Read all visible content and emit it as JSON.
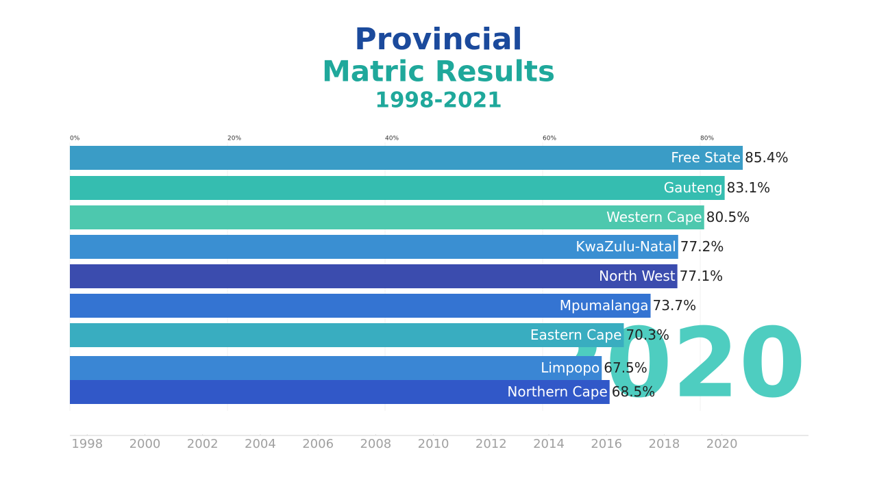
{
  "chart_data": {
    "type": "bar",
    "orientation": "horizontal",
    "title": "Provincial",
    "subtitle": "Matric Results",
    "period": "1998-2021",
    "categories": [
      "Free State",
      "Gauteng",
      "Western Cape",
      "KwaZulu-Natal",
      "North West",
      "Mpumalanga",
      "Eastern Cape",
      "Limpopo",
      "Northern Cape"
    ],
    "values": [
      85.4,
      83.1,
      80.5,
      77.2,
      77.1,
      73.7,
      70.3,
      67.5,
      68.5
    ],
    "value_labels": [
      "85.4%",
      "83.1%",
      "80.5%",
      "77.2%",
      "77.1%",
      "73.7%",
      "70.3%",
      "67.5%",
      "68.5%"
    ],
    "colors": [
      "#3a9cc6",
      "#35bdb0",
      "#4dc8ae",
      "#3a8fd2",
      "#3b4cae",
      "#3474d2",
      "#39adc0",
      "#3a86d4",
      "#3158c8"
    ],
    "xlim": [
      0,
      94
    ],
    "xticks": [
      {
        "value": 0,
        "label": "0%"
      },
      {
        "value": 20,
        "label": "20%"
      },
      {
        "value": 40,
        "label": "40%"
      },
      {
        "value": 60,
        "label": "60%"
      },
      {
        "value": 80,
        "label": "80%"
      }
    ],
    "grid": true,
    "current_year": 2020,
    "timeline": {
      "xlim": [
        1997.4,
        2023
      ],
      "xticks": [
        1998,
        2000,
        2002,
        2004,
        2006,
        2008,
        2010,
        2012,
        2014,
        2016,
        2018,
        2020
      ]
    }
  }
}
